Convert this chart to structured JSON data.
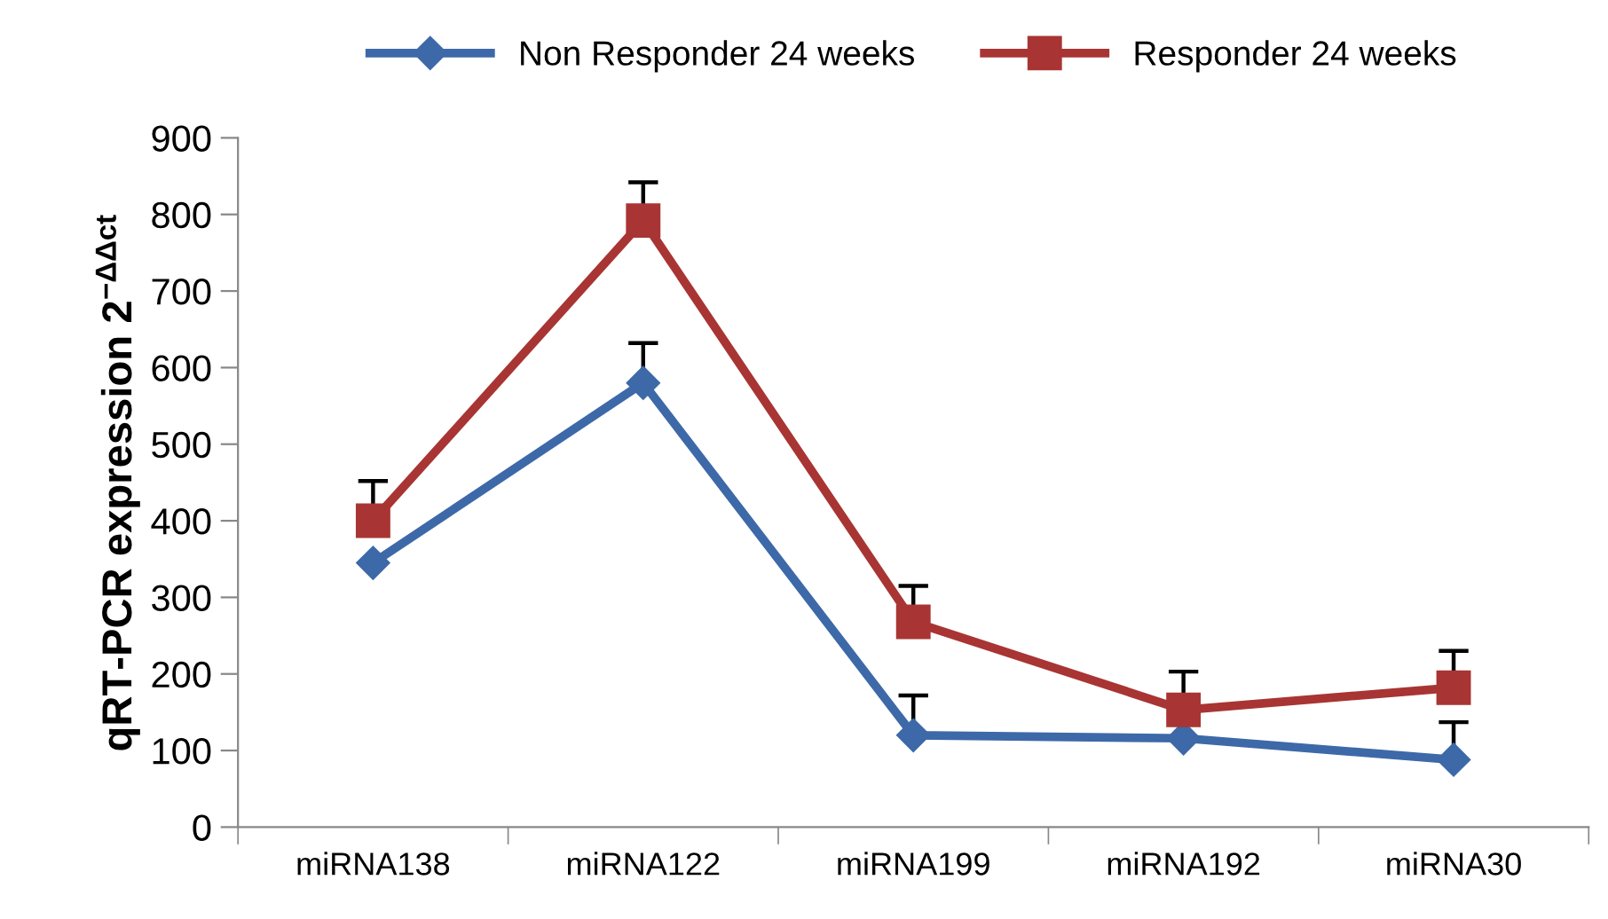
{
  "chart_data": {
    "type": "line",
    "ylabel": "qRT-PCR expression 2$^{−ΔΔct}$",
    "categories": [
      "miRNA138",
      "miRNA122",
      "miRNA199",
      "miRNA192",
      "miRNA30"
    ],
    "series": [
      {
        "name": "Non Responder 24 weeks",
        "color": "#3d69a8",
        "marker": "diamond",
        "values": [
          345,
          580,
          120,
          116,
          88
        ],
        "errors": [
          null,
          [
            580,
            632
          ],
          [
            120,
            172
          ],
          null,
          [
            88,
            137
          ]
        ]
      },
      {
        "name": "Responder 24 weeks",
        "color": "#a83533",
        "marker": "square",
        "values": [
          400,
          792,
          268,
          153,
          182
        ],
        "errors": [
          [
            400,
            452
          ],
          [
            792,
            842
          ],
          [
            268,
            315
          ],
          [
            153,
            203
          ],
          [
            182,
            230
          ]
        ]
      }
    ],
    "ylim": [
      0,
      900
    ],
    "yticks": [
      0,
      100,
      200,
      300,
      400,
      500,
      600,
      700,
      800,
      900
    ],
    "grid": false,
    "legend": "top",
    "line_style": "solid"
  }
}
